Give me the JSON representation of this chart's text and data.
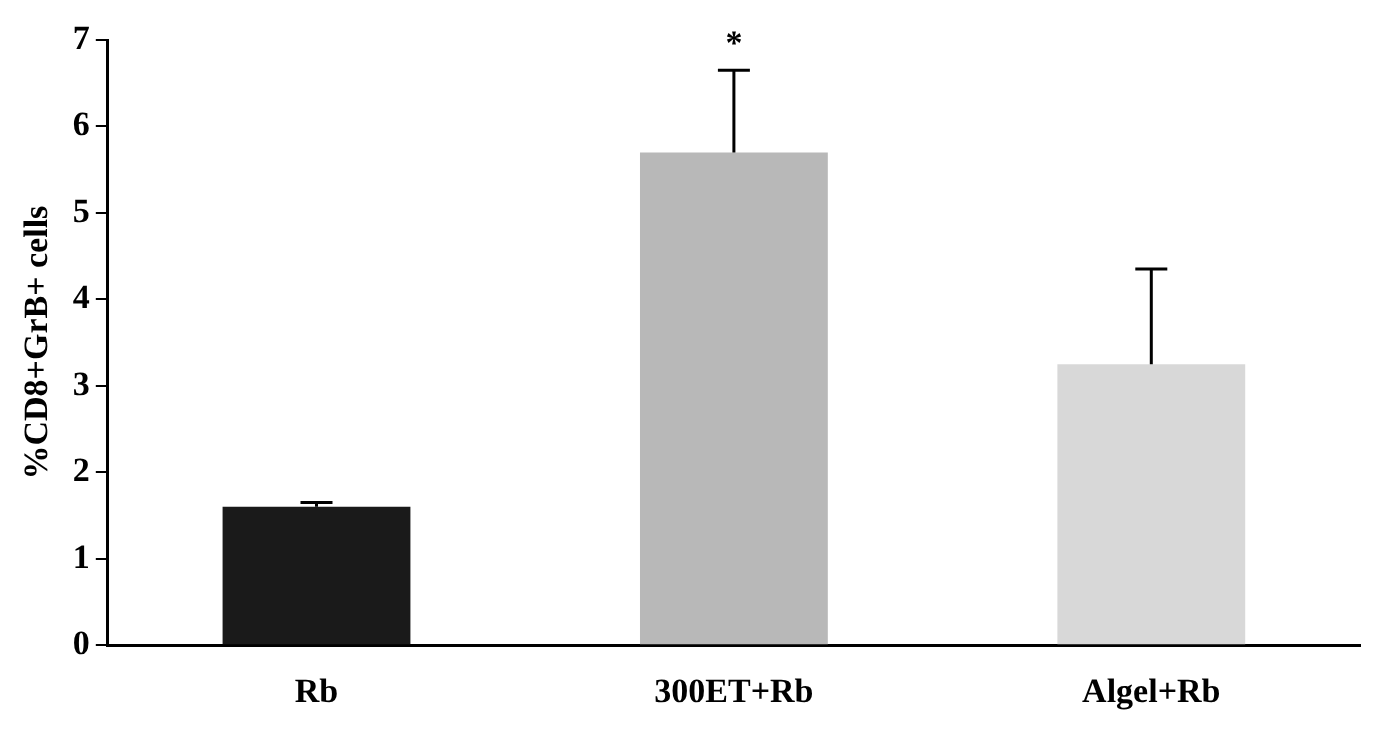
{
  "chart_data": {
    "type": "bar",
    "ylabel": "%CD8+GrB+ cells",
    "categories": [
      "Rb",
      "300ET+Rb",
      "Algel+Rb"
    ],
    "values": [
      1.6,
      5.7,
      3.25
    ],
    "colors": [
      "#1a1a1a",
      "#b8b8b8",
      "#d8d8d8"
    ],
    "errors": [
      [
        1.6,
        1.65
      ],
      [
        5.7,
        6.65
      ],
      [
        3.25,
        4.35
      ]
    ],
    "ylim": [
      0,
      7
    ],
    "yticks": [
      0,
      1,
      2,
      3,
      4,
      5,
      6,
      7
    ],
    "grid": false,
    "legend": false,
    "annotations": [
      {
        "text": "*",
        "x": "300ET+Rb",
        "y": 6.65
      }
    ]
  }
}
